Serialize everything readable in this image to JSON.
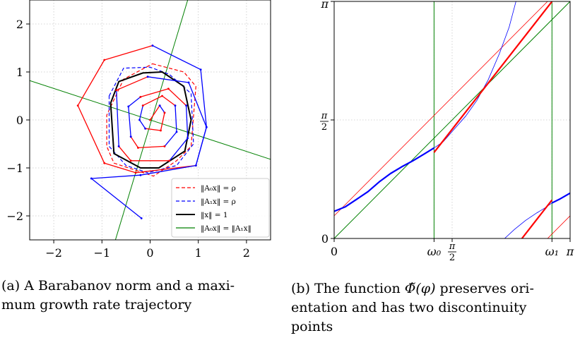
{
  "chart_data": [
    {
      "type": "line",
      "xlim": [
        -2.5,
        2.5
      ],
      "ylim": [
        -2.5,
        2.5
      ],
      "xticks": [
        -2,
        -1,
        0,
        1,
        2
      ],
      "yticks": [
        -2,
        -1,
        0,
        1,
        2
      ],
      "xtick_labels": [
        "−2",
        "−1",
        "0",
        "1",
        "2"
      ],
      "ytick_labels": [
        "−2",
        "−1",
        "0",
        "1",
        "2"
      ],
      "grid": true,
      "legend_position": "lower-right",
      "colors": {
        "red": "#ff0000",
        "blue": "#0000ff",
        "black": "#000000",
        "green": "#008000"
      },
      "legend": [
        {
          "label": "‖A₀x‖ = ρ",
          "color": "#ff0000",
          "dash": true
        },
        {
          "label": "‖A₁x‖ = ρ",
          "color": "#0000ff",
          "dash": true
        },
        {
          "label": "‖x‖ = 1",
          "color": "#000000",
          "dash": false
        },
        {
          "label": "‖A₀x‖ = ‖A₁x‖",
          "color": "#008000",
          "dash": false
        }
      ],
      "red_dashed_polygon": [
        [
          0.05,
          1.17
        ],
        [
          0.7,
          1.0
        ],
        [
          0.95,
          0.7
        ],
        [
          0.85,
          -0.55
        ],
        [
          0.55,
          -0.85
        ],
        [
          0.07,
          -1.17
        ],
        [
          -0.75,
          -0.9
        ],
        [
          -0.9,
          -0.55
        ],
        [
          -0.9,
          0.1
        ],
        [
          -0.55,
          0.85
        ]
      ],
      "blue_dashed_polygon": [
        [
          -0.85,
          0.5
        ],
        [
          -0.55,
          1.08
        ],
        [
          0.0,
          1.1
        ],
        [
          0.4,
          0.95
        ],
        [
          0.85,
          0.55
        ],
        [
          0.9,
          -0.5
        ],
        [
          0.55,
          -0.95
        ],
        [
          -0.05,
          -1.1
        ],
        [
          -0.5,
          -0.95
        ],
        [
          -0.85,
          -0.55
        ]
      ],
      "unit_polygon": [
        [
          -0.65,
          0.8
        ],
        [
          -0.15,
          0.98
        ],
        [
          0.25,
          1.0
        ],
        [
          0.7,
          0.7
        ],
        [
          0.85,
          0.0
        ],
        [
          0.72,
          -0.65
        ],
        [
          0.18,
          -1.0
        ],
        [
          -0.2,
          -1.0
        ],
        [
          -0.75,
          -0.7
        ],
        [
          -0.82,
          0.35
        ]
      ],
      "trajectory": [
        {
          "color": "red",
          "points": [
            [
              0,
              0
            ],
            [
              0.2,
              0.3
            ]
          ]
        },
        {
          "color": "blue",
          "points": [
            [
              0.2,
              0.3
            ],
            [
              0.3,
              0.15
            ]
          ]
        },
        {
          "color": "red",
          "points": [
            [
              0.3,
              0.15
            ],
            [
              0.22,
              -0.22
            ],
            [
              -0.1,
              -0.18
            ]
          ]
        },
        {
          "color": "blue",
          "points": [
            [
              -0.1,
              -0.18
            ],
            [
              -0.22,
              0.0
            ],
            [
              -0.15,
              0.3
            ]
          ]
        },
        {
          "color": "red",
          "points": [
            [
              -0.15,
              0.3
            ],
            [
              0.25,
              0.5
            ],
            [
              0.52,
              0.3
            ]
          ]
        },
        {
          "color": "blue",
          "points": [
            [
              0.52,
              0.3
            ],
            [
              0.55,
              -0.25
            ],
            [
              0.3,
              -0.55
            ]
          ]
        },
        {
          "color": "red",
          "points": [
            [
              0.3,
              -0.55
            ],
            [
              -0.25,
              -0.58
            ],
            [
              -0.4,
              -0.35
            ]
          ]
        },
        {
          "color": "blue",
          "points": [
            [
              -0.4,
              -0.35
            ],
            [
              -0.45,
              0.28
            ],
            [
              -0.2,
              0.48
            ]
          ]
        },
        {
          "color": "red",
          "points": [
            [
              -0.2,
              0.48
            ],
            [
              0.38,
              0.65
            ],
            [
              0.75,
              0.3
            ]
          ]
        },
        {
          "color": "blue",
          "points": [
            [
              0.75,
              0.3
            ],
            [
              0.78,
              -0.38
            ],
            [
              0.4,
              -0.85
            ]
          ]
        },
        {
          "color": "red",
          "points": [
            [
              0.4,
              -0.85
            ],
            [
              -0.4,
              -0.85
            ],
            [
              -0.65,
              -0.55
            ]
          ]
        },
        {
          "color": "blue",
          "points": [
            [
              -0.65,
              -0.55
            ],
            [
              -0.7,
              0.62
            ]
          ]
        },
        {
          "color": "red",
          "points": [
            [
              -0.7,
              0.62
            ],
            [
              -0.05,
              0.9
            ]
          ]
        },
        {
          "color": "blue",
          "points": [
            [
              -0.05,
              0.9
            ],
            [
              0.8,
              0.78
            ],
            [
              1.17,
              -0.15
            ],
            [
              0.95,
              -0.95
            ]
          ]
        },
        {
          "color": "red",
          "points": [
            [
              0.95,
              -0.95
            ],
            [
              -0.3,
              -1.1
            ],
            [
              -0.95,
              -0.9
            ],
            [
              -1.5,
              0.3
            ],
            [
              -0.95,
              1.25
            ],
            [
              0.05,
              1.55
            ]
          ]
        },
        {
          "color": "blue",
          "points": [
            [
              0.05,
              1.55
            ],
            [
              1.05,
              1.05
            ],
            [
              1.17,
              -0.15
            ],
            [
              0.95,
              -0.95
            ],
            [
              -0.2,
              -1.15
            ],
            [
              -1.22,
              -1.22
            ],
            [
              -0.18,
              -2.05
            ]
          ]
        }
      ],
      "green_lines": [
        [
          [
            -2.5,
            0.82
          ],
          [
            2.5,
            -0.82
          ]
        ],
        [
          [
            -0.72,
            -2.5
          ],
          [
            0.78,
            2.5
          ]
        ]
      ]
    },
    {
      "type": "line",
      "xlim": [
        0,
        3.14159
      ],
      "ylim": [
        0,
        3.14159
      ],
      "xtick_labels": [
        "0",
        "ω₀",
        "π/2",
        "ω₁",
        "π"
      ],
      "ytick_labels": [
        "0",
        "π/2",
        "π"
      ],
      "omega_0": 1.33,
      "omega_1": 2.9,
      "grid": true,
      "thin_red_line": {
        "slope": 1,
        "intercept": 0.3
      },
      "thick_red_segments": [
        [
          [
            1.33,
            1.14
          ],
          [
            2.9,
            3.14
          ]
        ],
        [
          [
            2.5,
            0
          ],
          [
            2.9,
            0.51
          ]
        ]
      ],
      "thick_blue_segments": [
        [
          [
            0,
            0.36
          ],
          [
            0.15,
            0.42
          ],
          [
            0.3,
            0.52
          ],
          [
            0.45,
            0.62
          ],
          [
            0.6,
            0.75
          ],
          [
            0.75,
            0.86
          ],
          [
            0.9,
            0.95
          ],
          [
            1.05,
            1.03
          ],
          [
            1.2,
            1.12
          ],
          [
            1.33,
            1.2
          ]
        ],
        [
          [
            2.9,
            0.47
          ],
          [
            3.0,
            0.52
          ],
          [
            3.14,
            0.6
          ]
        ]
      ],
      "thin_blue_curve": [
        [
          1.33,
          1.2
        ],
        [
          1.45,
          1.28
        ],
        [
          1.6,
          1.45
        ],
        [
          1.75,
          1.62
        ],
        [
          1.9,
          1.83
        ],
        [
          2.05,
          2.1
        ],
        [
          2.2,
          2.45
        ],
        [
          2.33,
          2.8
        ],
        [
          2.42,
          3.14
        ]
      ],
      "thin_blue_lower": [
        [
          2.27,
          0.0
        ],
        [
          2.4,
          0.12
        ],
        [
          2.55,
          0.24
        ],
        [
          2.7,
          0.34
        ],
        [
          2.8,
          0.4
        ],
        [
          2.9,
          0.47
        ]
      ],
      "green_diagonal": [
        [
          0,
          0
        ],
        [
          3.14159,
          3.14159
        ]
      ]
    }
  ],
  "captions": {
    "a": [
      "(a) A Barabanov norm and a maxi-",
      "mum growth rate trajectory"
    ],
    "b_prefix": "(b) The function ",
    "b_func": "Φ̃(φ)",
    "b_suffix": " preserves ori-",
    "b_lines": [
      "entation and has two discontinuity",
      "points"
    ]
  }
}
